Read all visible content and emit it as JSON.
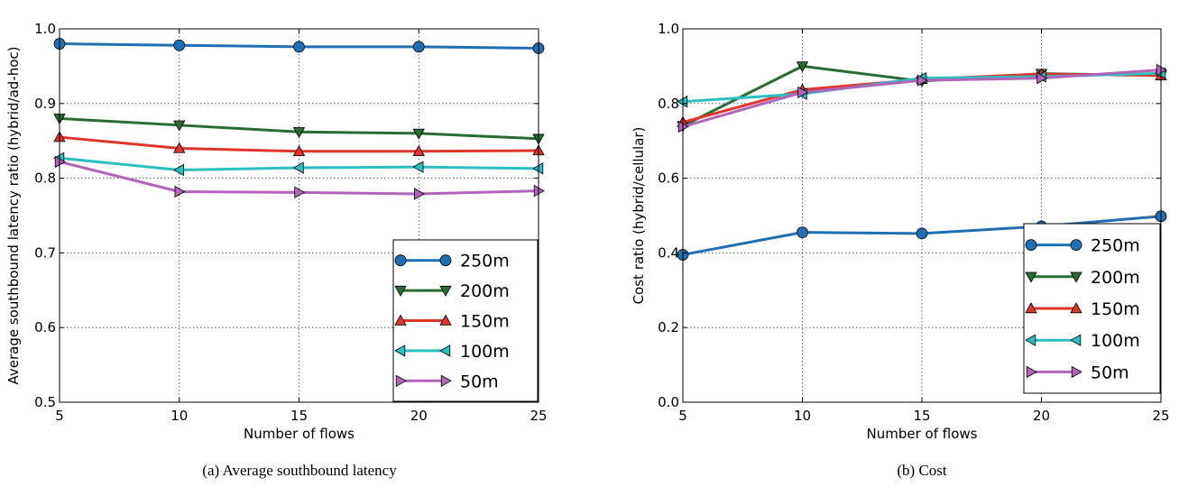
{
  "chart_data": [
    {
      "type": "line",
      "caption": "(a) Average southbound latency",
      "xlabel": "Number of flows",
      "ylabel": "Average southbound latency ratio (hybrid/ad-hoc)",
      "xlim": [
        5,
        25
      ],
      "ylim": [
        0.5,
        1.0
      ],
      "xticks": [
        "5",
        "10",
        "15",
        "20",
        "25"
      ],
      "yticks": [
        "0.5",
        "0.6",
        "0.7",
        "0.8",
        "0.9",
        "1.0"
      ],
      "grid": true,
      "legend_position": "lower-right",
      "x": [
        5,
        10,
        15,
        20,
        25
      ],
      "series": [
        {
          "name": "250m",
          "color": "#1f6fb2",
          "marker": "circle",
          "values": [
            0.98,
            0.978,
            0.976,
            0.976,
            0.974
          ]
        },
        {
          "name": "200m",
          "color": "#2a6b35",
          "marker": "triangle-down",
          "values": [
            0.88,
            0.871,
            0.862,
            0.86,
            0.853
          ]
        },
        {
          "name": "150m",
          "color": "#e0352b",
          "marker": "triangle-up",
          "values": [
            0.855,
            0.84,
            0.836,
            0.836,
            0.837
          ]
        },
        {
          "name": "100m",
          "color": "#2bbfbf",
          "marker": "triangle-left",
          "values": [
            0.827,
            0.811,
            0.814,
            0.815,
            0.813
          ]
        },
        {
          "name": "50m",
          "color": "#b065b8",
          "marker": "triangle-right",
          "values": [
            0.822,
            0.782,
            0.781,
            0.779,
            0.783
          ]
        }
      ]
    },
    {
      "type": "line",
      "caption": "(b) Cost",
      "xlabel": "Number of flows",
      "ylabel": "Cost ratio (hybrid/cellular)",
      "xlim": [
        5,
        25
      ],
      "ylim": [
        0.0,
        1.0
      ],
      "xticks": [
        "5",
        "10",
        "15",
        "20",
        "25"
      ],
      "yticks": [
        "0.0",
        "0.2",
        "0.4",
        "0.6",
        "0.8",
        "1.0"
      ],
      "grid": true,
      "legend_position": "lower-right",
      "x": [
        5,
        10,
        15,
        20,
        25
      ],
      "series": [
        {
          "name": "250m",
          "color": "#1f6fb2",
          "marker": "circle",
          "values": [
            0.395,
            0.455,
            0.452,
            0.471,
            0.498
          ]
        },
        {
          "name": "200m",
          "color": "#2a6b35",
          "marker": "triangle-down",
          "values": [
            0.74,
            0.9,
            0.86,
            0.88,
            0.875
          ]
        },
        {
          "name": "150m",
          "color": "#e0352b",
          "marker": "triangle-up",
          "values": [
            0.75,
            0.837,
            0.865,
            0.879,
            0.875
          ]
        },
        {
          "name": "100m",
          "color": "#2bbfbf",
          "marker": "triangle-left",
          "values": [
            0.805,
            0.826,
            0.868,
            0.872,
            0.881
          ]
        },
        {
          "name": "50m",
          "color": "#b065b8",
          "marker": "triangle-right",
          "values": [
            0.738,
            0.83,
            0.862,
            0.868,
            0.89
          ]
        }
      ]
    }
  ]
}
